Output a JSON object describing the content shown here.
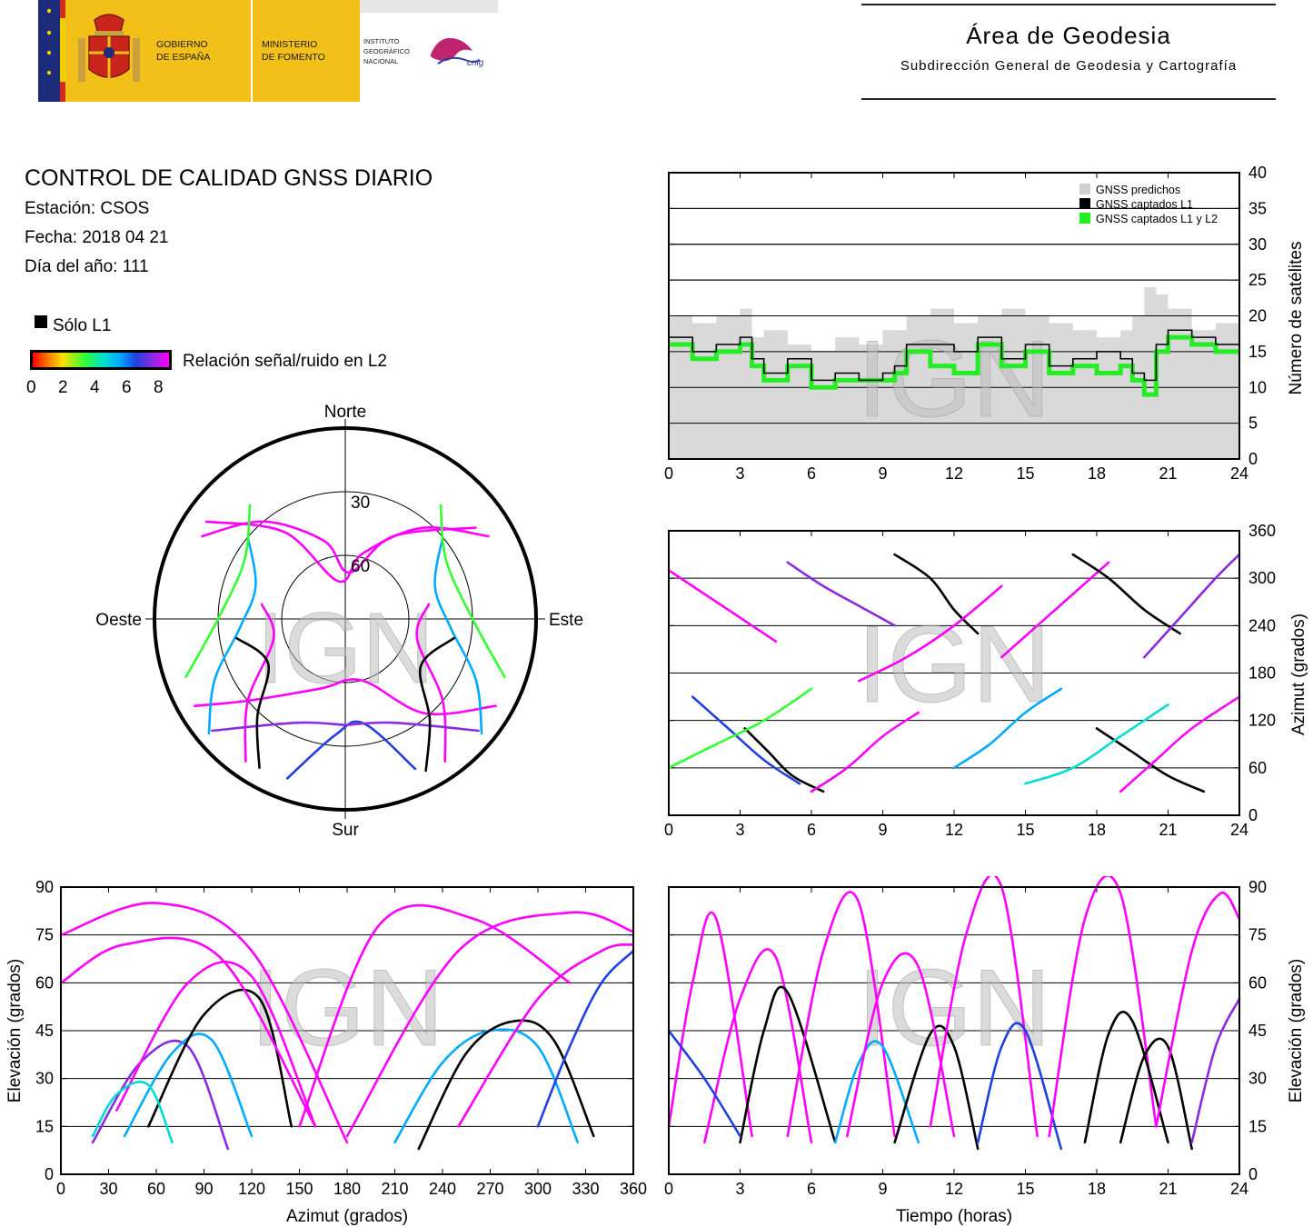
{
  "header": {
    "gov_line1": "GOBIERNO",
    "gov_line2": "DE ESPAÑA",
    "min_line1": "MINISTERIO",
    "min_line2": "DE FOMENTO",
    "ign_line1": "INSTITUTO",
    "ign_line2": "GEOGRÁFICO",
    "ign_line3": "NACIONAL",
    "cnig": "cnig",
    "area_title": "Área de Geodesia",
    "area_subtitle": "Subdirección General de Geodesia y Cartografía"
  },
  "info": {
    "title": "CONTROL DE CALIDAD GNSS DIARIO",
    "station": "Estación: CSOS",
    "date": "Fecha: 2018 04 21",
    "doy": "Día del año: 111",
    "only_l1": "Sólo L1",
    "snr_label": "Relación señal/ruido en L2",
    "snr_ticks": [
      "0",
      "2",
      "4",
      "6",
      "8"
    ]
  },
  "watermark": "IGN",
  "colors": {
    "magenta": "#ff00ff",
    "purple": "#8a2be2",
    "blue": "#1f3fd6",
    "cyan": "#00c8e8",
    "green": "#33ff33",
    "gray_fill": "#d9d9d9"
  },
  "chart_data": [
    {
      "type": "polar",
      "id": "skyplot",
      "cardinals": {
        "north": "Norte",
        "south": "Sur",
        "west": "Oeste",
        "east": "Este"
      },
      "ring_labels": [
        "30",
        "60"
      ],
      "tracks": [
        {
          "az": [
            300,
            320,
            345,
            5,
            30,
            55
          ],
          "el": [
            12,
            30,
            52,
            68,
            45,
            15
          ],
          "snr": 8
        },
        {
          "az": [
            60,
            40,
            15,
            350,
            325,
            305
          ],
          "el": [
            12,
            34,
            58,
            72,
            40,
            10
          ],
          "snr": 8
        },
        {
          "az": [
            240,
            230,
            200,
            165,
            140,
            120
          ],
          "el": [
            8,
            30,
            55,
            60,
            32,
            8
          ],
          "snr": 8
        },
        {
          "az": [
            200,
            185,
            170,
            155
          ],
          "el": [
            10,
            35,
            40,
            12
          ],
          "snr": 6
        },
        {
          "az": [
            310,
            290,
            265,
            245,
            230
          ],
          "el": [
            30,
            45,
            40,
            22,
            6
          ],
          "snr": 5
        },
        {
          "az": [
            50,
            70,
            95,
            115,
            130
          ],
          "el": [
            30,
            45,
            40,
            22,
            6
          ],
          "snr": 5
        },
        {
          "az": [
            280,
            255,
            230,
            215
          ],
          "el": [
            50,
            55,
            30,
            8
          ],
          "snr": 8
        },
        {
          "az": [
            80,
            105,
            130,
            145
          ],
          "el": [
            50,
            55,
            30,
            8
          ],
          "snr": 8
        },
        {
          "az": [
            320,
            300,
            270,
            250
          ],
          "el": [
            20,
            35,
            30,
            10
          ],
          "snr": 3
        },
        {
          "az": [
            40,
            60,
            90,
            110
          ],
          "el": [
            20,
            35,
            30,
            10
          ],
          "snr": 3
        },
        {
          "az": [
            230,
            205,
            180
          ],
          "el": [
            8,
            36,
            40
          ],
          "snr": 7
        },
        {
          "az": [
            130,
            155,
            180
          ],
          "el": [
            8,
            36,
            40
          ],
          "snr": 7
        },
        {
          "az": [
            260,
            240,
            222,
            210
          ],
          "el": [
            38,
            48,
            28,
            9
          ],
          "snr": 0
        },
        {
          "az": [
            100,
            122,
            140,
            152
          ],
          "el": [
            38,
            48,
            28,
            9
          ],
          "snr": 0
        }
      ]
    },
    {
      "type": "area",
      "id": "satellites",
      "x_ticks": [
        "0",
        "3",
        "6",
        "9",
        "12",
        "15",
        "18",
        "21",
        "24"
      ],
      "y_ticks": [
        "0",
        "5",
        "10",
        "15",
        "20",
        "25",
        "30",
        "35",
        "40"
      ],
      "ylabel": "Número de satélites",
      "xlim": [
        0,
        24
      ],
      "ylim": [
        0,
        40
      ],
      "legend": [
        "GNSS predichos",
        "GNSS captados L1",
        "GNSS captados L1 y L2"
      ],
      "series": [
        {
          "name": "GNSS predichos",
          "x": [
            0,
            1,
            2,
            3,
            3.5,
            4,
            5,
            6,
            7,
            8,
            9,
            10,
            11,
            12,
            13,
            14,
            15,
            16,
            17,
            18,
            19,
            19.5,
            20,
            20.5,
            21,
            22,
            23,
            24
          ],
          "values": [
            20,
            19,
            20,
            21,
            17,
            18,
            16,
            15,
            17,
            16,
            18,
            20,
            21,
            19,
            20,
            21,
            20,
            19,
            18,
            17,
            18,
            20,
            24,
            23,
            21,
            18,
            19,
            18
          ]
        },
        {
          "name": "GNSS captados L1",
          "x": [
            0,
            1,
            2,
            3,
            3.5,
            4,
            5,
            6,
            7,
            8,
            9,
            9.5,
            10,
            11,
            12,
            13,
            14,
            15,
            16,
            17,
            18,
            19,
            19.5,
            20,
            20.5,
            21,
            22,
            23,
            24
          ],
          "values": [
            17,
            15,
            16,
            17,
            14,
            12,
            14,
            11,
            12,
            11,
            12,
            13,
            16,
            16,
            15,
            17,
            14,
            16,
            13,
            14,
            15,
            14,
            12,
            11,
            16,
            18,
            17,
            16,
            16
          ]
        },
        {
          "name": "GNSS captados L1 y L2",
          "x": [
            0,
            1,
            2,
            3,
            3.5,
            4,
            5,
            6,
            7,
            8,
            9,
            9.5,
            10,
            11,
            12,
            13,
            14,
            15,
            16,
            17,
            18,
            19,
            19.5,
            20,
            20.5,
            21,
            22,
            23,
            24
          ],
          "values": [
            16,
            14,
            15,
            16,
            13,
            11,
            13,
            10,
            11,
            11,
            11,
            12,
            15,
            13,
            12,
            16,
            13,
            15,
            12,
            13,
            12,
            13,
            11,
            9,
            15,
            17,
            16,
            15,
            15
          ]
        }
      ]
    },
    {
      "type": "scatter",
      "id": "azimuth-time",
      "x_ticks": [
        "0",
        "3",
        "6",
        "9",
        "12",
        "15",
        "18",
        "21",
        "24"
      ],
      "y_ticks": [
        "0",
        "60",
        "120",
        "180",
        "240",
        "300",
        "360"
      ],
      "ylabel": "Azimut (grados)",
      "xlim": [
        0,
        24
      ],
      "ylim": [
        0,
        360
      ],
      "tracks": [
        {
          "x": [
            0,
            1.5,
            3,
            4.5
          ],
          "y": [
            310,
            280,
            250,
            220
          ],
          "snr": 8
        },
        {
          "x": [
            1,
            2.5,
            4,
            5.5
          ],
          "y": [
            150,
            110,
            70,
            40
          ],
          "snr": 6
        },
        {
          "x": [
            3.2,
            4.2,
            5.2,
            6.5
          ],
          "y": [
            110,
            80,
            50,
            30
          ],
          "snr": 0
        },
        {
          "x": [
            5,
            6.5,
            8,
            9.5
          ],
          "y": [
            320,
            290,
            265,
            240
          ],
          "snr": 7
        },
        {
          "x": [
            6,
            7.5,
            9,
            10.5
          ],
          "y": [
            30,
            60,
            100,
            130
          ],
          "snr": 8
        },
        {
          "x": [
            9.5,
            11,
            12,
            13
          ],
          "y": [
            330,
            300,
            260,
            230
          ],
          "snr": 0
        },
        {
          "x": [
            12,
            13.5,
            15,
            16.5
          ],
          "y": [
            60,
            90,
            130,
            160
          ],
          "snr": 5
        },
        {
          "x": [
            14,
            15.5,
            17,
            18.5
          ],
          "y": [
            200,
            240,
            280,
            320
          ],
          "snr": 8
        },
        {
          "x": [
            17,
            18.5,
            20,
            21.5
          ],
          "y": [
            330,
            300,
            260,
            230
          ],
          "snr": 0
        },
        {
          "x": [
            18,
            19.5,
            21,
            22.5
          ],
          "y": [
            110,
            80,
            50,
            30
          ],
          "snr": 0
        },
        {
          "x": [
            19,
            20.5,
            22,
            24
          ],
          "y": [
            30,
            70,
            110,
            150
          ],
          "snr": 8
        },
        {
          "x": [
            20,
            21.5,
            23,
            24
          ],
          "y": [
            200,
            250,
            300,
            330
          ],
          "snr": 7
        },
        {
          "x": [
            0,
            2,
            4,
            6
          ],
          "y": [
            60,
            90,
            120,
            160
          ],
          "snr": 3
        },
        {
          "x": [
            8,
            10,
            12,
            14
          ],
          "y": [
            170,
            200,
            240,
            290
          ],
          "snr": 8
        },
        {
          "x": [
            15,
            17,
            19,
            21
          ],
          "y": [
            40,
            60,
            100,
            140
          ],
          "snr": 4
        }
      ]
    },
    {
      "type": "scatter",
      "id": "elevation-azimuth",
      "x_ticks": [
        "0",
        "30",
        "60",
        "90",
        "120",
        "150",
        "180",
        "210",
        "240",
        "270",
        "300",
        "330",
        "360"
      ],
      "y_ticks": [
        "0",
        "15",
        "30",
        "45",
        "60",
        "75",
        "90"
      ],
      "xlabel": "Azimut (grados)",
      "ylabel": "Elevación (grados)",
      "xlim": [
        0,
        360
      ],
      "ylim": [
        0,
        90
      ],
      "tracks": [
        {
          "x": [
            20,
            50,
            80,
            105
          ],
          "y": [
            10,
            35,
            40,
            8
          ],
          "snr": 7
        },
        {
          "x": [
            40,
            70,
            95,
            120
          ],
          "y": [
            12,
            38,
            42,
            12
          ],
          "snr": 5
        },
        {
          "x": [
            55,
            90,
            125,
            145
          ],
          "y": [
            15,
            50,
            55,
            15
          ],
          "snr": 0
        },
        {
          "x": [
            35,
            80,
            120,
            160
          ],
          "y": [
            20,
            60,
            62,
            15
          ],
          "snr": 8
        },
        {
          "x": [
            0,
            60,
            120,
            180
          ],
          "y": [
            75,
            85,
            70,
            10
          ],
          "snr": 8
        },
        {
          "x": [
            150,
            200,
            260,
            320
          ],
          "y": [
            15,
            78,
            80,
            60
          ],
          "snr": 8
        },
        {
          "x": [
            210,
            240,
            270,
            300,
            325
          ],
          "y": [
            10,
            35,
            45,
            40,
            10
          ],
          "snr": 5
        },
        {
          "x": [
            225,
            255,
            285,
            310,
            335
          ],
          "y": [
            8,
            38,
            48,
            42,
            12
          ],
          "snr": 0
        },
        {
          "x": [
            250,
            300,
            340,
            360
          ],
          "y": [
            15,
            55,
            70,
            72
          ],
          "snr": 8
        },
        {
          "x": [
            0,
            40,
            100,
            160
          ],
          "y": [
            60,
            72,
            68,
            15
          ],
          "snr": 8
        },
        {
          "x": [
            180,
            250,
            320,
            360
          ],
          "y": [
            12,
            70,
            82,
            76
          ],
          "snr": 8
        },
        {
          "x": [
            300,
            320,
            340,
            360
          ],
          "y": [
            15,
            40,
            60,
            70
          ],
          "snr": 6
        },
        {
          "x": [
            20,
            35,
            55,
            70
          ],
          "y": [
            12,
            25,
            28,
            10
          ],
          "snr": 4
        }
      ]
    },
    {
      "type": "scatter",
      "id": "elevation-time",
      "x_ticks": [
        "0",
        "3",
        "6",
        "9",
        "12",
        "15",
        "18",
        "21",
        "24"
      ],
      "y_ticks": [
        "0",
        "15",
        "30",
        "45",
        "60",
        "75",
        "90"
      ],
      "xlabel": "Tiempo (horas)",
      "ylabel": "Elevación (grados)",
      "xlim": [
        0,
        24
      ],
      "ylim": [
        0,
        90
      ],
      "tracks": [
        {
          "x": [
            0,
            1,
            2,
            3.5
          ],
          "y": [
            15,
            60,
            80,
            12
          ],
          "snr": 8
        },
        {
          "x": [
            1.5,
            3,
            4.5,
            6
          ],
          "y": [
            10,
            55,
            68,
            10
          ],
          "snr": 8
        },
        {
          "x": [
            3,
            4,
            5,
            7
          ],
          "y": [
            10,
            45,
            57,
            10
          ],
          "snr": 0
        },
        {
          "x": [
            5,
            6.5,
            8,
            9.5
          ],
          "y": [
            12,
            70,
            85,
            12
          ],
          "snr": 8
        },
        {
          "x": [
            7,
            8,
            9,
            10.5
          ],
          "y": [
            10,
            35,
            40,
            10
          ],
          "snr": 5
        },
        {
          "x": [
            9.5,
            11,
            12,
            13
          ],
          "y": [
            10,
            44,
            40,
            8
          ],
          "snr": 0
        },
        {
          "x": [
            11,
            12.5,
            14,
            15.5
          ],
          "y": [
            15,
            75,
            90,
            12
          ],
          "snr": 8
        },
        {
          "x": [
            13,
            14,
            15,
            16.5
          ],
          "y": [
            10,
            40,
            45,
            8
          ],
          "snr": 6
        },
        {
          "x": [
            16,
            17.5,
            19,
            20.5
          ],
          "y": [
            12,
            80,
            88,
            15
          ],
          "snr": 8
        },
        {
          "x": [
            17.5,
            18.5,
            19.5,
            21
          ],
          "y": [
            10,
            44,
            48,
            10
          ],
          "snr": 0
        },
        {
          "x": [
            19,
            20,
            21,
            22
          ],
          "y": [
            10,
            37,
            40,
            8
          ],
          "snr": 0
        },
        {
          "x": [
            20.5,
            22,
            23.2,
            24
          ],
          "y": [
            15,
            70,
            88,
            80
          ],
          "snr": 8
        },
        {
          "x": [
            22,
            23,
            24
          ],
          "y": [
            10,
            40,
            55
          ],
          "snr": 7
        },
        {
          "x": [
            0,
            1.5,
            3
          ],
          "y": [
            45,
            30,
            12
          ],
          "snr": 6
        },
        {
          "x": [
            7.5,
            9,
            10.5,
            12
          ],
          "y": [
            12,
            60,
            65,
            12
          ],
          "snr": 8
        }
      ]
    }
  ]
}
